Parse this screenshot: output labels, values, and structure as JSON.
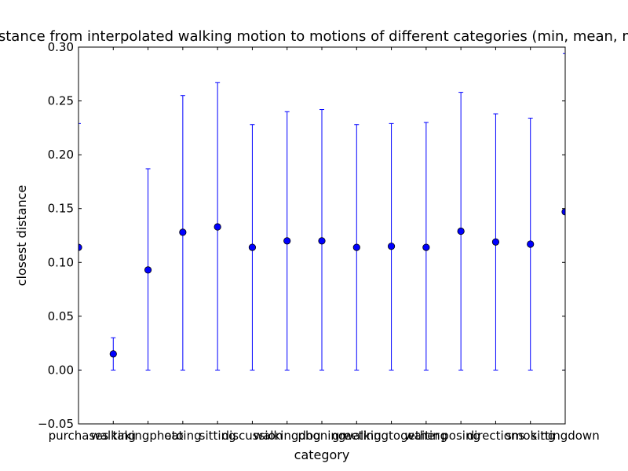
{
  "chart_data": {
    "type": "scatter",
    "title": "distance from interpolated walking motion to motions of different categories (min, mean, max)",
    "xlabel": "category",
    "ylabel": "closest distance",
    "ylim": [
      -0.05,
      0.3
    ],
    "yticks": [
      "−0.05",
      "0.00",
      "0.05",
      "0.10",
      "0.15",
      "0.20",
      "0.25",
      "0.30"
    ],
    "ytick_values": [
      -0.05,
      0.0,
      0.05,
      0.1,
      0.15,
      0.2,
      0.25,
      0.3
    ],
    "grid": false,
    "legend": "none",
    "colors": {
      "marker": "#0000ff",
      "errorbar": "#0000ff",
      "axes": "#000000"
    },
    "categories": [
      "purchases",
      "walking",
      "takingphoto",
      "eating",
      "sitting",
      "discussion",
      "walkingdog",
      "phoning",
      "greeting",
      "walkingtogether",
      "waiting",
      "posing",
      "directions",
      "smoking",
      "sittingdown"
    ],
    "mean": [
      0.114,
      0.015,
      0.093,
      0.128,
      0.133,
      0.114,
      0.12,
      0.12,
      0.114,
      0.115,
      0.114,
      0.129,
      0.119,
      0.117,
      0.147
    ],
    "min": [
      0.0,
      0.0,
      0.0,
      0.0,
      0.0,
      0.0,
      0.0,
      0.0,
      0.0,
      0.0,
      0.0,
      0.0,
      0.0,
      0.0,
      0.0
    ],
    "max": [
      0.229,
      0.03,
      0.187,
      0.255,
      0.267,
      0.228,
      0.24,
      0.242,
      0.228,
      0.229,
      0.23,
      0.258,
      0.238,
      0.234,
      0.294
    ]
  }
}
